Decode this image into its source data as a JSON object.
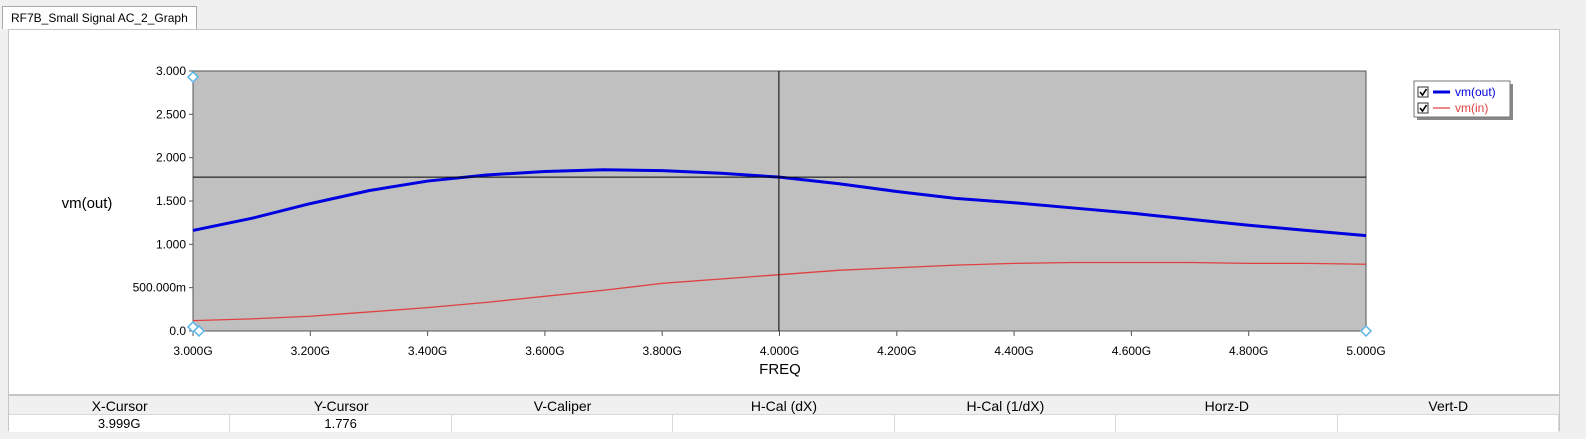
{
  "tab": {
    "label": "RF7B_Small Signal AC_2_Graph"
  },
  "chart_data": {
    "type": "line",
    "xlabel": "FREQ",
    "ylabel": "vm(out)",
    "xlim": [
      3000000000.0,
      5000000000.0
    ],
    "ylim": [
      0,
      3.0
    ],
    "grid": false,
    "legend_position": "top-right",
    "x_tick_values": [
      3000000000.0,
      3200000000.0,
      3400000000.0,
      3600000000.0,
      3800000000.0,
      4000000000.0,
      4200000000.0,
      4400000000.0,
      4600000000.0,
      4800000000.0,
      5000000000.0
    ],
    "x_tick_labels": [
      "3.000G",
      "3.200G",
      "3.400G",
      "3.600G",
      "3.800G",
      "4.000G",
      "4.200G",
      "4.400G",
      "4.600G",
      "4.800G",
      "5.000G"
    ],
    "y_tick_values": [
      0,
      0.5,
      1.0,
      1.5,
      2.0,
      2.5,
      3.0
    ],
    "y_tick_labels": [
      "0.0",
      "500.000m",
      "1.000",
      "1.500",
      "2.000",
      "2.500",
      "3.000"
    ],
    "x": [
      3000000000.0,
      3100000000.0,
      3200000000.0,
      3300000000.0,
      3400000000.0,
      3500000000.0,
      3600000000.0,
      3700000000.0,
      3800000000.0,
      3900000000.0,
      4000000000.0,
      4100000000.0,
      4200000000.0,
      4300000000.0,
      4400000000.0,
      4500000000.0,
      4600000000.0,
      4700000000.0,
      4800000000.0,
      4900000000.0,
      5000000000.0
    ],
    "series": [
      {
        "name": "vm(out)",
        "color": "#0000e0",
        "checked": true,
        "values": [
          1.16,
          1.3,
          1.47,
          1.62,
          1.73,
          1.8,
          1.84,
          1.86,
          1.85,
          1.82,
          1.776,
          1.7,
          1.61,
          1.53,
          1.48,
          1.42,
          1.36,
          1.29,
          1.22,
          1.16,
          1.1
        ]
      },
      {
        "name": "vm(in)",
        "color": "#e04040",
        "checked": true,
        "values": [
          0.12,
          0.14,
          0.17,
          0.22,
          0.27,
          0.33,
          0.4,
          0.47,
          0.55,
          0.6,
          0.65,
          0.7,
          0.73,
          0.76,
          0.78,
          0.79,
          0.79,
          0.79,
          0.78,
          0.78,
          0.77
        ]
      }
    ],
    "cursor": {
      "x": 3999000000.0,
      "y": 1.776
    },
    "axis_color": "#555555",
    "plot_bg": "#c0c0c0",
    "marker_color": "#5ab4e6"
  },
  "cursor_table": {
    "headers": [
      "X-Cursor",
      "Y-Cursor",
      "V-Caliper",
      "H-Cal (dX)",
      "H-Cal (1/dX)",
      "Horz-D",
      "Vert-D"
    ],
    "values": [
      "3.999G",
      "1.776",
      "",
      "",
      "",
      "",
      ""
    ]
  }
}
